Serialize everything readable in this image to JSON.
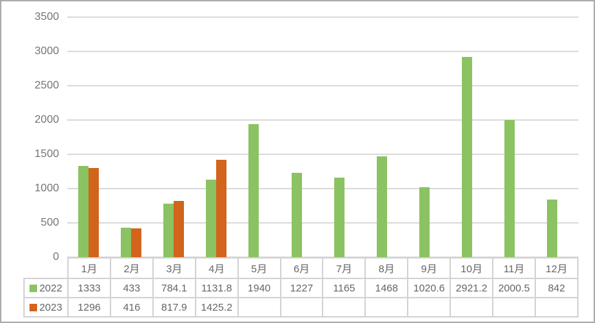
{
  "chart_data": {
    "type": "bar",
    "title": "",
    "xlabel": "",
    "ylabel": "",
    "categories": [
      "1月",
      "2月",
      "3月",
      "4月",
      "5月",
      "6月",
      "7月",
      "8月",
      "9月",
      "10月",
      "11月",
      "12月"
    ],
    "series": [
      {
        "name": "2022",
        "color": "#8bc262",
        "values": [
          1333,
          433,
          784.1,
          1131.8,
          1940,
          1227,
          1165,
          1468,
          1020.6,
          2921.2,
          2000.5,
          842
        ],
        "labels": [
          "1333",
          "433",
          "784.1",
          "1131.8",
          "1940",
          "1227",
          "1165",
          "1468",
          "1020.6",
          "2921.2",
          "2000.5",
          "842"
        ]
      },
      {
        "name": "2023",
        "color": "#d2641c",
        "values": [
          1296,
          416,
          817.9,
          1425.2,
          null,
          null,
          null,
          null,
          null,
          null,
          null,
          null
        ],
        "labels": [
          "1296",
          "416",
          "817.9",
          "1425.2",
          "",
          "",
          "",
          "",
          "",
          "",
          "",
          ""
        ]
      }
    ],
    "ylim": [
      0,
      3500
    ],
    "y_tick_step": 500,
    "y_tick_labels_top_to_bottom": [
      "3500",
      "3000",
      "2500",
      "2000",
      "1500",
      "1000",
      "500",
      "0"
    ],
    "grid": true,
    "legend_position": "data-table-row-headers",
    "data_table_shown": true
  },
  "colors": {
    "background": "#ffffff",
    "frame_border": "#ababab",
    "gridline": "#dbdbdb",
    "table_border": "#d3d3d3",
    "table_text": "#666666",
    "axis_text": "#757575",
    "series_2022": "#8bc262",
    "series_2023": "#d2641c"
  }
}
